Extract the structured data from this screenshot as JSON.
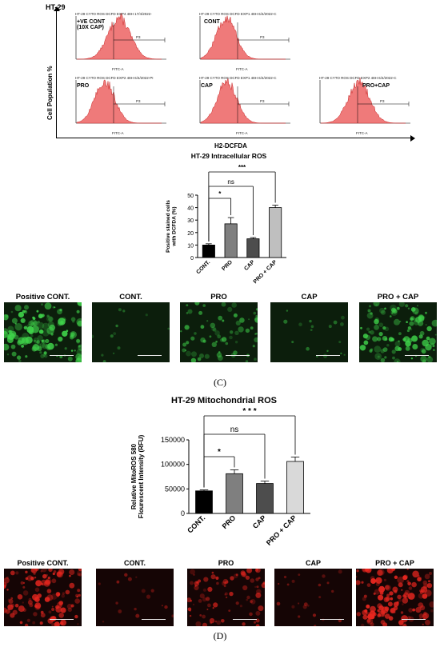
{
  "flow_section": {
    "cell_line": "HT-29",
    "y_axis_label": "Cell Population %",
    "x_axis_label": "H2-DCFDA",
    "x_tick_label": "FITC-A",
    "gate_label": "P3",
    "histograms": [
      {
        "title": "HT-29 CYTO ROS DCFD EXP4 48H 17/4/2022-",
        "label": "+VE CONT\n(10X CAP)",
        "peak": 0.5
      },
      {
        "title": "HT-29 CYTO ROS DCFD EXP1 48H 6/4/2022-C",
        "label": "CONT",
        "peak": 0.3
      },
      {
        "title": "HT-29 CYTO ROS DCFD EXP2 48H 6/4/2022-PI",
        "label": "PRO",
        "peak": 0.33
      },
      {
        "title": "HT-29 CYTO ROS DCFD EXP1 48H 6/4/2022-C",
        "label": "CAP",
        "peak": 0.31
      },
      {
        "title": "HT-29 CYTO ROS DCFD EXP2 48H 6/4/2022-C",
        "label": "PRO+CAP",
        "peak": 0.45
      }
    ]
  },
  "chart_data": [
    {
      "type": "bar",
      "title": "HT-29 Intracellular ROS",
      "ylabel": "Positive stained cells\nwith DCFDA (%)",
      "categories": [
        "CONT.",
        "PRO",
        "CAP",
        "PRO + CAP"
      ],
      "values": [
        10,
        27,
        15,
        40
      ],
      "errors": [
        1,
        5,
        1,
        2
      ],
      "colors": [
        "#000000",
        "#7f7f7f",
        "#4d4d4d",
        "#bfbfbf"
      ],
      "ylim": [
        0,
        50
      ],
      "yticks": [
        "0",
        "10",
        "20",
        "30",
        "40",
        "50"
      ],
      "significance": [
        {
          "from": 0,
          "to": 1,
          "label": "*"
        },
        {
          "from": 0,
          "to": 2,
          "label": "ns"
        },
        {
          "from": 0,
          "to": 3,
          "label": "***"
        }
      ]
    },
    {
      "type": "bar",
      "title": "HT-29 Mitochondrial ROS",
      "ylabel": "Relative MitoROS 580\nFlourescent Intensity (RFU)",
      "categories": [
        "CONT.",
        "PRO",
        "CAP",
        "PRO + CAP"
      ],
      "values": [
        46000,
        81000,
        61000,
        106000
      ],
      "errors": [
        2000,
        8000,
        5000,
        9000
      ],
      "colors": [
        "#000000",
        "#7f7f7f",
        "#4d4d4d",
        "#d9d9d9"
      ],
      "ylim": [
        0,
        150000
      ],
      "yticks": [
        "0",
        "50000",
        "100000",
        "150000"
      ],
      "significance": [
        {
          "from": 0,
          "to": 1,
          "label": "*"
        },
        {
          "from": 0,
          "to": 2,
          "label": "ns"
        },
        {
          "from": 0,
          "to": 3,
          "label": "* * *"
        }
      ]
    }
  ],
  "green_images": {
    "labels": [
      "Positive CONT.",
      "CONT.",
      "PRO",
      "CAP",
      "PRO + CAP"
    ],
    "density": [
      0.9,
      0.05,
      0.45,
      0.1,
      0.75
    ],
    "color": "#3fd24a"
  },
  "red_images": {
    "labels": [
      "Positive CONT.",
      "CONT.",
      "PRO",
      "CAP",
      "PRO + CAP"
    ],
    "density": [
      0.8,
      0.08,
      0.55,
      0.12,
      0.95
    ],
    "color": "#e8261f"
  },
  "captions": {
    "c": "(C)",
    "d": "(D)"
  }
}
